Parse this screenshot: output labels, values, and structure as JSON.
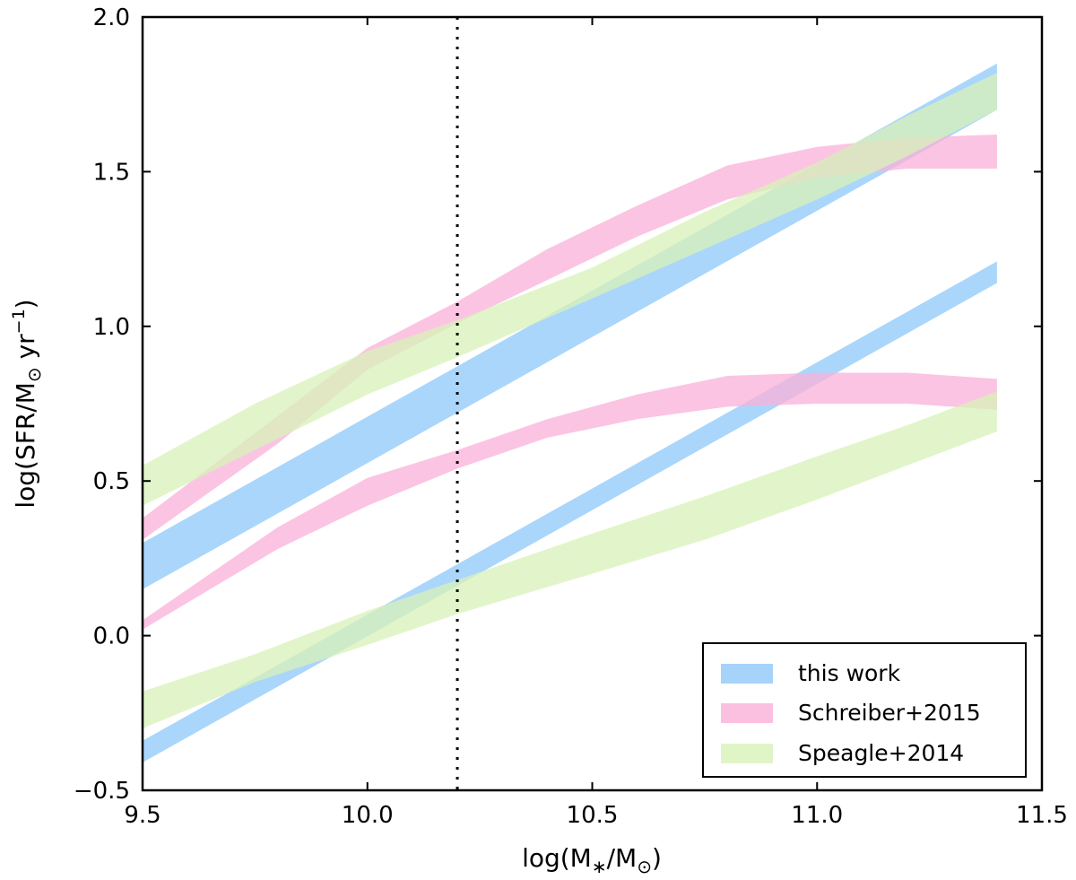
{
  "chart_data": {
    "type": "area",
    "xlabel": {
      "pre": "log(M",
      "sub1": "∗",
      "mid": "/M",
      "sub2": "⊙",
      "post": ")"
    },
    "ylabel": {
      "pre": "log(SFR/M",
      "sub": "⊙",
      "mid": " yr",
      "sup": "−1",
      "post": ")"
    },
    "xlim": [
      9.5,
      11.5
    ],
    "ylim": [
      -0.5,
      2.0
    ],
    "xticks": [
      9.5,
      10.0,
      10.5,
      11.0,
      11.5
    ],
    "yticks": [
      -0.5,
      0.0,
      0.5,
      1.0,
      1.5,
      2.0
    ],
    "xtick_labels": [
      "9.5",
      "10.0",
      "10.5",
      "11.0",
      "11.5"
    ],
    "ytick_labels": [
      "−0.5",
      "0.0",
      "0.5",
      "1.0",
      "1.5",
      "2.0"
    ],
    "grid": false,
    "legend_position": "bottom-right",
    "vline": {
      "x": 10.2,
      "style": "dotted"
    },
    "series": [
      {
        "name": "this work",
        "color": "#8ec8f9",
        "bands": [
          {
            "x": [
              9.5,
              11.4
            ],
            "lower": [
              0.15,
              1.7
            ],
            "upper": [
              0.3,
              1.85
            ]
          },
          {
            "x": [
              9.5,
              11.4
            ],
            "lower": [
              -0.41,
              1.14
            ],
            "upper": [
              -0.34,
              1.21
            ]
          }
        ]
      },
      {
        "name": "Schreiber+2015",
        "color": "#fab0d8",
        "bands": [
          {
            "x": [
              9.5,
              9.8,
              10.0,
              10.2,
              10.4,
              10.6,
              10.8,
              11.0,
              11.2,
              11.4
            ],
            "lower": [
              0.31,
              0.62,
              0.86,
              1.01,
              1.15,
              1.29,
              1.41,
              1.48,
              1.51,
              1.51
            ],
            "upper": [
              0.38,
              0.71,
              0.93,
              1.08,
              1.25,
              1.39,
              1.52,
              1.58,
              1.61,
              1.62
            ]
          },
          {
            "x": [
              9.5,
              9.8,
              10.0,
              10.2,
              10.4,
              10.6,
              10.8,
              11.0,
              11.2,
              11.4
            ],
            "lower": [
              0.02,
              0.28,
              0.42,
              0.54,
              0.64,
              0.7,
              0.74,
              0.75,
              0.75,
              0.73
            ],
            "upper": [
              0.05,
              0.35,
              0.51,
              0.6,
              0.7,
              0.78,
              0.84,
              0.85,
              0.85,
              0.83
            ]
          }
        ]
      },
      {
        "name": "Speagle+2014",
        "color": "#d8f2b8",
        "bands": [
          {
            "x": [
              9.5,
              9.75,
              10.0,
              10.2,
              10.5,
              10.75,
              11.0,
              11.2,
              11.4
            ],
            "lower": [
              0.42,
              0.6,
              0.78,
              0.9,
              1.09,
              1.25,
              1.41,
              1.55,
              1.7
            ],
            "upper": [
              0.55,
              0.75,
              0.92,
              1.02,
              1.19,
              1.37,
              1.53,
              1.68,
              1.82
            ]
          },
          {
            "x": [
              9.5,
              9.75,
              10.0,
              10.2,
              10.5,
              10.75,
              11.0,
              11.2,
              11.4
            ],
            "lower": [
              -0.3,
              -0.15,
              -0.03,
              0.07,
              0.2,
              0.31,
              0.44,
              0.55,
              0.66
            ],
            "upper": [
              -0.18,
              -0.06,
              0.08,
              0.18,
              0.33,
              0.45,
              0.58,
              0.68,
              0.79
            ]
          }
        ]
      }
    ]
  }
}
